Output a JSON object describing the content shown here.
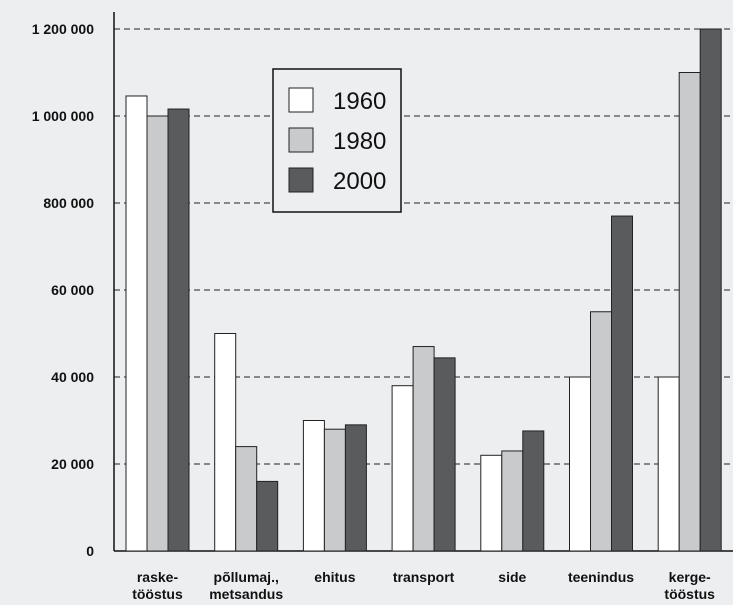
{
  "chart_data": {
    "type": "bar",
    "title": "",
    "xlabel": "",
    "ylabel": "",
    "categories": [
      [
        "raske-",
        "tööstus"
      ],
      [
        "põllumaj.,",
        "metsandus"
      ],
      [
        "ehitus"
      ],
      [
        "transport"
      ],
      [
        "side"
      ],
      [
        "teenindus"
      ],
      [
        "kerge-",
        "tööstus"
      ]
    ],
    "ytick_labels": [
      "0",
      "20 000",
      "40 000",
      "60 000",
      "800 000",
      "1 000 000",
      "1 200 000"
    ],
    "ylim": [
      0,
      6
    ],
    "series": [
      {
        "name": "1960",
        "color": "#ffffff",
        "values": [
          5.23,
          2.5,
          1.5,
          1.9,
          1.1,
          2.0,
          2.0
        ]
      },
      {
        "name": "1980",
        "color": "#c9cacb",
        "values": [
          5.0,
          1.2,
          1.4,
          2.35,
          1.15,
          2.75,
          5.5
        ]
      },
      {
        "name": "2000",
        "color": "#5a5b5d",
        "values": [
          5.08,
          0.8,
          1.45,
          2.22,
          1.38,
          3.85,
          6.0
        ]
      }
    ],
    "legend_position": "top-center",
    "grid": "horizontal-dashed"
  }
}
